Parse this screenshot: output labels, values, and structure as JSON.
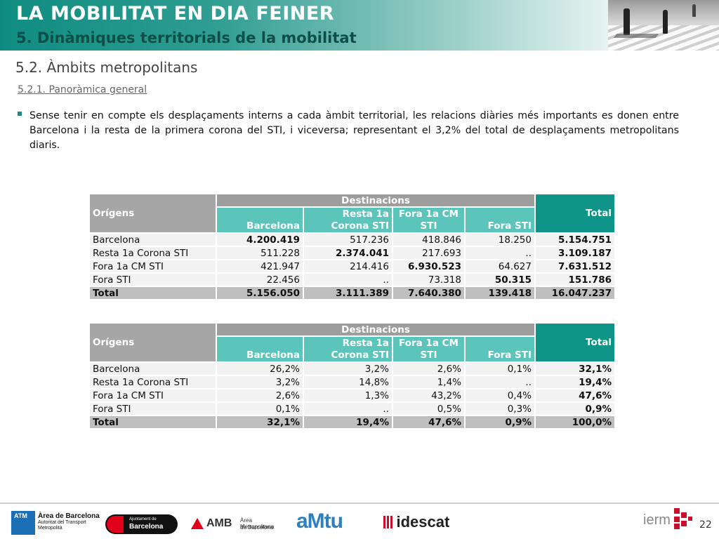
{
  "header": {
    "title": "LA MOBILITAT EN DIA FEINER",
    "subtitle": "5. Dinàmiques territorials de la mobilitat"
  },
  "section": "5.2. Àmbits metropolitans",
  "subsection": "5.2.1. Panoràmica general",
  "bullet": "Sense tenir en compte els desplaçaments interns a cada àmbit territorial, les relacions diàries més importants es donen entre Barcelona i la resta de la primera corona del STI, i viceversa; representant el 3,2% del total de desplaçaments metropolitans diaris.",
  "table1": {
    "origins_label": "Orígens",
    "dest_label": "Destinacions",
    "cols": [
      "Barcelona",
      "Resta 1a Corona STI",
      "Fora 1a CM STI",
      "Fora STI"
    ],
    "total_label": "Total",
    "rows": [
      {
        "label": "Barcelona",
        "values": [
          "4.200.419",
          "517.236",
          "418.846",
          "18.250"
        ],
        "total": "5.154.751"
      },
      {
        "label": "Resta 1a Corona STI",
        "values": [
          "511.228",
          "2.374.041",
          "217.693",
          ".."
        ],
        "total": "3.109.187"
      },
      {
        "label": "Fora 1a CM STI",
        "values": [
          "421.947",
          "214.416",
          "6.930.523",
          "64.627"
        ],
        "total": "7.631.512"
      },
      {
        "label": "Fora STI",
        "values": [
          "22.456",
          "..",
          "73.318",
          "50.315"
        ],
        "total": "151.786"
      }
    ],
    "total_row": {
      "label": "Total",
      "values": [
        "5.156.050",
        "3.111.389",
        "7.640.380",
        "139.418"
      ],
      "total": "16.047.237"
    }
  },
  "table2": {
    "origins_label": "Orígens",
    "dest_label": "Destinacions",
    "cols": [
      "Barcelona",
      "Resta 1a Corona STI",
      "Fora 1a CM STI",
      "Fora STI"
    ],
    "total_label": "Total",
    "rows": [
      {
        "label": "Barcelona",
        "values": [
          "26,2%",
          "3,2%",
          "2,6%",
          "0,1%"
        ],
        "total": "32,1%"
      },
      {
        "label": "Resta 1a Corona STI",
        "values": [
          "3,2%",
          "14,8%",
          "1,4%",
          ".."
        ],
        "total": "19,4%"
      },
      {
        "label": "Fora 1a CM STI",
        "values": [
          "2,6%",
          "1,3%",
          "43,2%",
          "0,4%"
        ],
        "total": "47,6%"
      },
      {
        "label": "Fora STI",
        "values": [
          "0,1%",
          "..",
          "0,5%",
          "0,3%"
        ],
        "total": "0,9%"
      }
    ],
    "total_row": {
      "label": "Total",
      "values": [
        "32,1%",
        "19,4%",
        "47,6%",
        "0,9%"
      ],
      "total": "100,0%"
    }
  },
  "footer": {
    "atm_badge": "ATM",
    "atm_line1": "Àrea de Barcelona",
    "atm_line2": "Autoritat del Transport",
    "atm_line3": "Metropolità",
    "ajuntament_line1": "Ajuntament de",
    "ajuntament_line2": "Barcelona",
    "amb_abbr": "AMB",
    "amb_line1": "Àrea Metropolitana",
    "amb_line2": "de Barcelona",
    "amtu_logo": "aMtu",
    "idescat": "idescat",
    "ierm": "ierm",
    "page_number": "22"
  },
  "colors": {
    "header_teal": "#0f8c80",
    "subtitle_dark": "#0d4f48",
    "header_light_teal": "#5bc5bb",
    "total_teal": "#0f9488",
    "header_grey": "#a6a6a6"
  }
}
